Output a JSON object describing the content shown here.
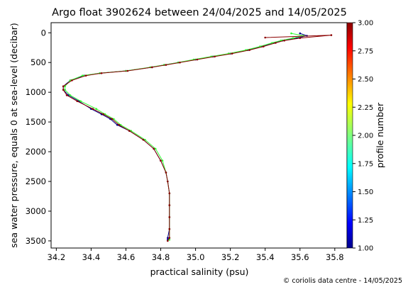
{
  "chart_data": {
    "type": "line",
    "title": "Argo float 3902624 between 24/04/2025 and 14/05/2025",
    "xlabel": "practical salinity (psu)",
    "ylabel": "sea water pressure, equals 0 at sea-level (decibar)",
    "xlim": [
      34.17,
      35.87
    ],
    "ylim": [
      3620,
      -170
    ],
    "y_inverted": true,
    "xticks": [
      34.2,
      34.4,
      34.6,
      34.8,
      35.0,
      35.2,
      35.4,
      35.6,
      35.8
    ],
    "xtick_labels": [
      "34.2",
      "34.4",
      "34.6",
      "34.8",
      "35.0",
      "35.2",
      "35.4",
      "35.6",
      "35.8"
    ],
    "yticks": [
      0,
      500,
      1000,
      1500,
      2000,
      2500,
      3000,
      3500
    ],
    "ytick_labels": [
      "0",
      "500",
      "1000",
      "1500",
      "2000",
      "2500",
      "3000",
      "3500"
    ],
    "grid": false,
    "colorbar": {
      "label": "profile number",
      "colormap": "jet",
      "range": [
        1.0,
        3.0
      ],
      "ticks": [
        1.0,
        1.25,
        1.5,
        1.75,
        2.0,
        2.25,
        2.5,
        2.75,
        3.0
      ],
      "tick_labels": [
        "1.00",
        "1.25",
        "1.50",
        "1.75",
        "2.00",
        "2.25",
        "2.50",
        "2.75",
        "3.00"
      ]
    },
    "series": [
      {
        "profile": 1,
        "color": "#00008b",
        "x": [
          35.6,
          35.64,
          35.58,
          35.5,
          35.45,
          35.38,
          35.3,
          35.2,
          35.1,
          35.0,
          34.9,
          34.82,
          34.75,
          34.6,
          34.45,
          34.36,
          34.28,
          34.24,
          34.24,
          34.27,
          34.33,
          34.4,
          34.46,
          34.51,
          34.55,
          34.62,
          34.7,
          34.76,
          34.8,
          34.83,
          34.84,
          34.85,
          34.85,
          34.85,
          34.85,
          34.84,
          34.84
        ],
        "y": [
          10,
          50,
          90,
          130,
          170,
          230,
          290,
          350,
          400,
          450,
          500,
          540,
          580,
          640,
          680,
          720,
          800,
          900,
          960,
          1050,
          1150,
          1280,
          1370,
          1450,
          1550,
          1650,
          1800,
          1950,
          2150,
          2350,
          2500,
          2700,
          2900,
          3100,
          3300,
          3450,
          3480
        ]
      },
      {
        "profile": 2,
        "color": "#32ff32",
        "x": [
          35.55,
          35.62,
          35.56,
          35.49,
          35.44,
          35.37,
          35.29,
          35.19,
          35.09,
          34.99,
          34.9,
          34.82,
          34.74,
          34.6,
          34.45,
          34.35,
          34.28,
          34.25,
          34.25,
          34.28,
          34.34,
          34.43,
          34.48,
          34.53,
          34.57,
          34.63,
          34.71,
          34.77,
          34.81,
          34.83,
          34.84,
          34.85,
          34.85,
          34.85,
          34.85,
          34.85,
          34.85
        ],
        "y": [
          10,
          50,
          90,
          130,
          170,
          230,
          290,
          350,
          400,
          450,
          500,
          540,
          580,
          640,
          680,
          720,
          800,
          900,
          960,
          1050,
          1150,
          1280,
          1370,
          1450,
          1550,
          1650,
          1800,
          1950,
          2150,
          2350,
          2500,
          2700,
          2900,
          3100,
          3300,
          3450,
          3480
        ]
      },
      {
        "profile": 3,
        "color": "#8b0000",
        "x": [
          35.4,
          35.78,
          35.6,
          35.51,
          35.46,
          35.39,
          35.31,
          35.21,
          35.11,
          35.01,
          34.91,
          34.83,
          34.75,
          34.61,
          34.46,
          34.37,
          34.29,
          34.24,
          34.24,
          34.26,
          34.32,
          34.41,
          34.47,
          34.52,
          34.56,
          34.62,
          34.7,
          34.76,
          34.8,
          34.83,
          34.84,
          34.85,
          34.85,
          34.85,
          34.85,
          34.85,
          34.84
        ],
        "y": [
          80,
          40,
          90,
          130,
          170,
          230,
          290,
          350,
          400,
          450,
          500,
          540,
          580,
          640,
          680,
          720,
          800,
          900,
          960,
          1050,
          1150,
          1280,
          1370,
          1450,
          1550,
          1650,
          1800,
          1950,
          2150,
          2350,
          2500,
          2700,
          2900,
          3100,
          3300,
          3450,
          3500
        ]
      }
    ]
  },
  "footer": {
    "credit": "© coriolis data centre - 14/05/2025"
  }
}
